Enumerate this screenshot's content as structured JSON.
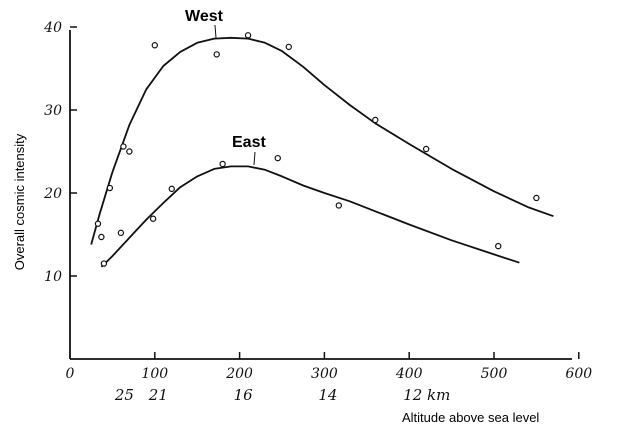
{
  "chart_data": {
    "type": "scatter",
    "xlabel": "Altitude above sea level",
    "ylabel": "Overall cosmic intensity",
    "xlim": [
      0,
      600
    ],
    "ylim": [
      0,
      40
    ],
    "x_ticks": [
      0,
      100,
      200,
      300,
      400,
      500,
      600
    ],
    "y_ticks": [
      10,
      20,
      30,
      40
    ],
    "altitude_ticks": [
      {
        "x": 60,
        "label": "25"
      },
      {
        "x": 100,
        "label": "21"
      },
      {
        "x": 200,
        "label": "16"
      },
      {
        "x": 300,
        "label": "14"
      },
      {
        "x": 400,
        "label": "12 km"
      }
    ],
    "grid": false,
    "series": [
      {
        "name": "West",
        "points": [
          [
            33,
            16.3
          ],
          [
            37,
            14.7
          ],
          [
            47,
            20.6
          ],
          [
            63,
            25.6
          ],
          [
            70,
            25.0
          ],
          [
            100,
            37.8
          ],
          [
            173,
            36.7
          ],
          [
            210,
            39.0
          ],
          [
            258,
            37.6
          ],
          [
            360,
            28.8
          ],
          [
            420,
            25.3
          ],
          [
            550,
            19.4
          ]
        ],
        "curve": [
          [
            25,
            13.8
          ],
          [
            35,
            17.5
          ],
          [
            50,
            22.5
          ],
          [
            70,
            28.2
          ],
          [
            90,
            32.5
          ],
          [
            110,
            35.3
          ],
          [
            130,
            37.0
          ],
          [
            150,
            38.1
          ],
          [
            170,
            38.6
          ],
          [
            190,
            38.7
          ],
          [
            210,
            38.6
          ],
          [
            230,
            38.1
          ],
          [
            250,
            37.1
          ],
          [
            275,
            35.2
          ],
          [
            300,
            33.0
          ],
          [
            330,
            30.6
          ],
          [
            360,
            28.4
          ],
          [
            400,
            25.9
          ],
          [
            450,
            22.9
          ],
          [
            500,
            20.2
          ],
          [
            540,
            18.3
          ],
          [
            570,
            17.2
          ]
        ]
      },
      {
        "name": "East",
        "points": [
          [
            40,
            11.5
          ],
          [
            60,
            15.2
          ],
          [
            98,
            16.9
          ],
          [
            120,
            20.5
          ],
          [
            180,
            23.5
          ],
          [
            245,
            24.2
          ],
          [
            317,
            18.5
          ],
          [
            505,
            13.6
          ]
        ],
        "curve": [
          [
            37,
            11.1
          ],
          [
            50,
            12.4
          ],
          [
            70,
            14.6
          ],
          [
            90,
            16.8
          ],
          [
            110,
            18.8
          ],
          [
            130,
            20.7
          ],
          [
            150,
            22.0
          ],
          [
            170,
            22.9
          ],
          [
            190,
            23.2
          ],
          [
            210,
            23.2
          ],
          [
            230,
            22.8
          ],
          [
            250,
            22.0
          ],
          [
            275,
            20.9
          ],
          [
            300,
            20.0
          ],
          [
            330,
            19.0
          ],
          [
            360,
            17.8
          ],
          [
            400,
            16.2
          ],
          [
            450,
            14.3
          ],
          [
            500,
            12.6
          ],
          [
            530,
            11.6
          ]
        ]
      }
    ]
  }
}
